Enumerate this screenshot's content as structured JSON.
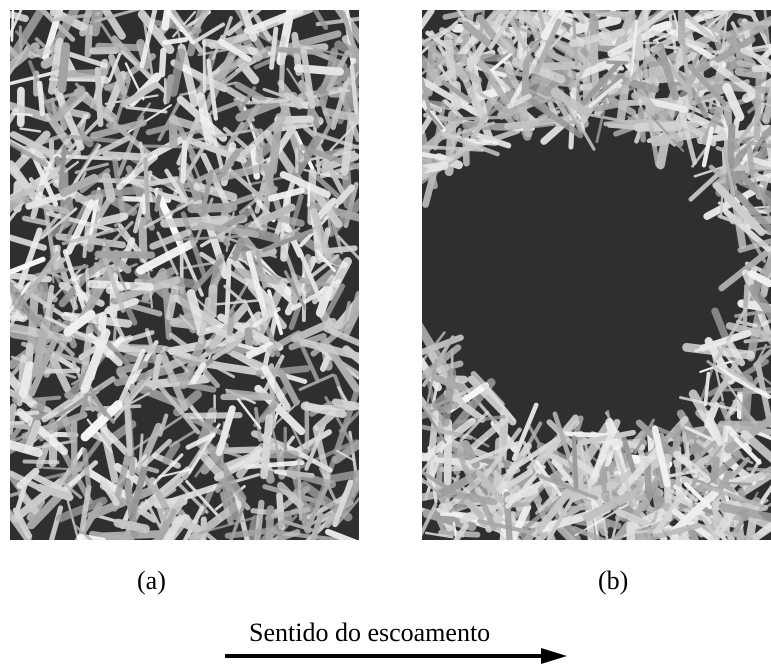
{
  "panels": [
    {
      "caption": "(a)"
    },
    {
      "caption": "(b)"
    }
  ],
  "flow": {
    "label": "Sentido do escoamento"
  }
}
